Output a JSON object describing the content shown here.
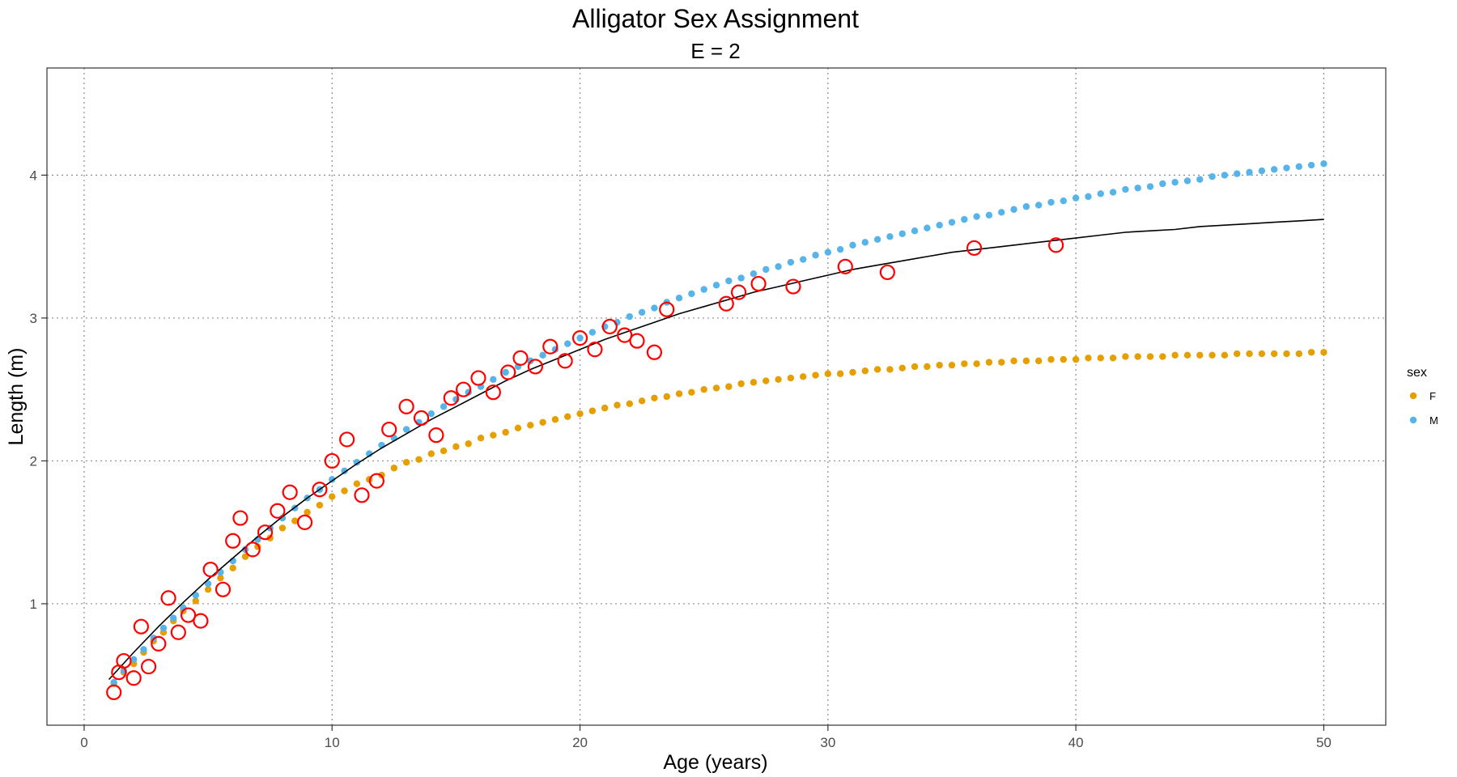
{
  "chart_data": {
    "type": "scatter",
    "title": "Alligator Sex Assignment",
    "subtitle": "E = 2",
    "xlabel": "Age (years)",
    "ylabel": "Length (m)",
    "xlim": [
      -1.5,
      52.5
    ],
    "ylim": [
      0.15,
      4.75
    ],
    "x_ticks": [
      0,
      10,
      20,
      30,
      40,
      50
    ],
    "y_ticks": [
      1,
      2,
      3,
      4
    ],
    "x_tick_labels": [
      "0",
      "10",
      "20",
      "30",
      "40",
      "50"
    ],
    "y_tick_labels": [
      "1",
      "2",
      "3",
      "4"
    ],
    "grid": "dotted",
    "legend": {
      "title": "sex",
      "placement": "right",
      "entries": [
        {
          "label": "F",
          "color": "#E69F00"
        },
        {
          "label": "M",
          "color": "#56B4E9"
        }
      ]
    },
    "series": [
      {
        "name": "F",
        "color": "#E69F00",
        "points": [
          [
            1.2,
            0.44
          ],
          [
            1.6,
            0.52
          ],
          [
            2.0,
            0.58
          ],
          [
            2.4,
            0.66
          ],
          [
            2.8,
            0.74
          ],
          [
            3.2,
            0.8
          ],
          [
            3.6,
            0.88
          ],
          [
            4.0,
            0.95
          ],
          [
            4.5,
            1.02
          ],
          [
            5.0,
            1.1
          ],
          [
            5.5,
            1.18
          ],
          [
            6.0,
            1.25
          ],
          [
            6.5,
            1.33
          ],
          [
            7.0,
            1.4
          ],
          [
            7.5,
            1.46
          ],
          [
            8.0,
            1.53
          ],
          [
            8.5,
            1.58
          ],
          [
            9.0,
            1.64
          ],
          [
            9.5,
            1.69
          ],
          [
            10.0,
            1.75
          ],
          [
            10.5,
            1.79
          ],
          [
            11.0,
            1.84
          ],
          [
            11.5,
            1.87
          ],
          [
            12.0,
            1.9
          ],
          [
            12.5,
            1.95
          ],
          [
            13.0,
            1.99
          ],
          [
            13.5,
            2.01
          ],
          [
            14.0,
            2.05
          ],
          [
            14.5,
            2.07
          ],
          [
            15.0,
            2.1
          ],
          [
            15.5,
            2.12
          ],
          [
            16.0,
            2.16
          ],
          [
            16.5,
            2.18
          ],
          [
            17.0,
            2.2
          ],
          [
            17.5,
            2.23
          ],
          [
            18.0,
            2.25
          ],
          [
            18.5,
            2.27
          ],
          [
            19.0,
            2.29
          ],
          [
            19.5,
            2.31
          ],
          [
            20.0,
            2.33
          ],
          [
            20.5,
            2.35
          ],
          [
            21.0,
            2.37
          ],
          [
            21.5,
            2.39
          ],
          [
            22.0,
            2.4
          ],
          [
            22.5,
            2.42
          ],
          [
            23.0,
            2.44
          ],
          [
            23.5,
            2.45
          ],
          [
            24.0,
            2.47
          ],
          [
            24.5,
            2.48
          ],
          [
            25.0,
            2.5
          ],
          [
            25.5,
            2.51
          ],
          [
            26.0,
            2.52
          ],
          [
            26.5,
            2.54
          ],
          [
            27.0,
            2.55
          ],
          [
            27.5,
            2.56
          ],
          [
            28.0,
            2.57
          ],
          [
            28.5,
            2.58
          ],
          [
            29.0,
            2.59
          ],
          [
            29.5,
            2.6
          ],
          [
            30.0,
            2.61
          ],
          [
            30.5,
            2.61
          ],
          [
            31.0,
            2.62
          ],
          [
            31.5,
            2.63
          ],
          [
            32.0,
            2.64
          ],
          [
            32.5,
            2.64
          ],
          [
            33.0,
            2.65
          ],
          [
            33.5,
            2.66
          ],
          [
            34.0,
            2.66
          ],
          [
            34.5,
            2.67
          ],
          [
            35.0,
            2.67
          ],
          [
            35.5,
            2.68
          ],
          [
            36.0,
            2.68
          ],
          [
            36.5,
            2.69
          ],
          [
            37.0,
            2.69
          ],
          [
            37.5,
            2.7
          ],
          [
            38.0,
            2.7
          ],
          [
            38.5,
            2.7
          ],
          [
            39.0,
            2.71
          ],
          [
            39.5,
            2.71
          ],
          [
            40.0,
            2.71
          ],
          [
            40.5,
            2.72
          ],
          [
            41.0,
            2.72
          ],
          [
            41.5,
            2.72
          ],
          [
            42.0,
            2.73
          ],
          [
            42.5,
            2.73
          ],
          [
            43.0,
            2.73
          ],
          [
            43.5,
            2.73
          ],
          [
            44.0,
            2.74
          ],
          [
            44.5,
            2.74
          ],
          [
            45.0,
            2.74
          ],
          [
            45.5,
            2.74
          ],
          [
            46.0,
            2.74
          ],
          [
            46.5,
            2.75
          ],
          [
            47.0,
            2.75
          ],
          [
            47.5,
            2.75
          ],
          [
            48.0,
            2.75
          ],
          [
            48.5,
            2.75
          ],
          [
            49.0,
            2.75
          ],
          [
            49.5,
            2.76
          ],
          [
            50.0,
            2.76
          ]
        ]
      },
      {
        "name": "M",
        "color": "#56B4E9",
        "points": [
          [
            1.2,
            0.45
          ],
          [
            1.6,
            0.53
          ],
          [
            2.0,
            0.61
          ],
          [
            2.4,
            0.68
          ],
          [
            2.8,
            0.76
          ],
          [
            3.2,
            0.83
          ],
          [
            3.6,
            0.9
          ],
          [
            4.0,
            0.97
          ],
          [
            4.5,
            1.06
          ],
          [
            5.0,
            1.14
          ],
          [
            5.5,
            1.22
          ],
          [
            6.0,
            1.3
          ],
          [
            6.5,
            1.38
          ],
          [
            7.0,
            1.45
          ],
          [
            7.5,
            1.53
          ],
          [
            8.0,
            1.6
          ],
          [
            8.5,
            1.67
          ],
          [
            9.0,
            1.74
          ],
          [
            9.5,
            1.8
          ],
          [
            10.0,
            1.87
          ],
          [
            10.5,
            1.93
          ],
          [
            11.0,
            1.99
          ],
          [
            11.5,
            2.05
          ],
          [
            12.0,
            2.11
          ],
          [
            12.5,
            2.16
          ],
          [
            13.0,
            2.22
          ],
          [
            13.5,
            2.27
          ],
          [
            14.0,
            2.33
          ],
          [
            14.5,
            2.38
          ],
          [
            15.0,
            2.43
          ],
          [
            15.5,
            2.48
          ],
          [
            16.0,
            2.52
          ],
          [
            16.5,
            2.57
          ],
          [
            17.0,
            2.62
          ],
          [
            17.5,
            2.66
          ],
          [
            18.0,
            2.7
          ],
          [
            18.5,
            2.74
          ],
          [
            19.0,
            2.78
          ],
          [
            19.5,
            2.82
          ],
          [
            20.0,
            2.86
          ],
          [
            20.5,
            2.9
          ],
          [
            21.0,
            2.94
          ],
          [
            21.5,
            2.97
          ],
          [
            22.0,
            3.01
          ],
          [
            22.5,
            3.04
          ],
          [
            23.0,
            3.07
          ],
          [
            23.5,
            3.11
          ],
          [
            24.0,
            3.14
          ],
          [
            24.5,
            3.17
          ],
          [
            25.0,
            3.2
          ],
          [
            25.5,
            3.23
          ],
          [
            26.0,
            3.26
          ],
          [
            26.5,
            3.28
          ],
          [
            27.0,
            3.31
          ],
          [
            27.5,
            3.34
          ],
          [
            28.0,
            3.36
          ],
          [
            28.5,
            3.39
          ],
          [
            29.0,
            3.41
          ],
          [
            29.5,
            3.44
          ],
          [
            30.0,
            3.46
          ],
          [
            30.5,
            3.48
          ],
          [
            31.0,
            3.51
          ],
          [
            31.5,
            3.53
          ],
          [
            32.0,
            3.55
          ],
          [
            32.5,
            3.57
          ],
          [
            33.0,
            3.59
          ],
          [
            33.5,
            3.61
          ],
          [
            34.0,
            3.63
          ],
          [
            34.5,
            3.65
          ],
          [
            35.0,
            3.67
          ],
          [
            35.5,
            3.69
          ],
          [
            36.0,
            3.71
          ],
          [
            36.5,
            3.72
          ],
          [
            37.0,
            3.74
          ],
          [
            37.5,
            3.76
          ],
          [
            38.0,
            3.78
          ],
          [
            38.5,
            3.79
          ],
          [
            39.0,
            3.81
          ],
          [
            39.5,
            3.82
          ],
          [
            40.0,
            3.84
          ],
          [
            40.5,
            3.85
          ],
          [
            41.0,
            3.87
          ],
          [
            41.5,
            3.88
          ],
          [
            42.0,
            3.9
          ],
          [
            42.5,
            3.91
          ],
          [
            43.0,
            3.92
          ],
          [
            43.5,
            3.94
          ],
          [
            44.0,
            3.95
          ],
          [
            44.5,
            3.96
          ],
          [
            45.0,
            3.97
          ],
          [
            45.5,
            3.99
          ],
          [
            46.0,
            4.0
          ],
          [
            46.5,
            4.01
          ],
          [
            47.0,
            4.02
          ],
          [
            47.5,
            4.03
          ],
          [
            48.0,
            4.04
          ],
          [
            48.5,
            4.05
          ],
          [
            49.0,
            4.06
          ],
          [
            49.5,
            4.07
          ],
          [
            50.0,
            4.08
          ]
        ]
      }
    ],
    "highlighted": {
      "color": "#FF0000",
      "points": [
        [
          1.2,
          0.38
        ],
        [
          1.4,
          0.52
        ],
        [
          1.6,
          0.6
        ],
        [
          2.0,
          0.48
        ],
        [
          2.3,
          0.84
        ],
        [
          2.6,
          0.56
        ],
        [
          3.0,
          0.72
        ],
        [
          3.4,
          1.04
        ],
        [
          3.8,
          0.8
        ],
        [
          4.2,
          0.92
        ],
        [
          4.7,
          0.88
        ],
        [
          5.1,
          1.24
        ],
        [
          5.6,
          1.1
        ],
        [
          6.0,
          1.44
        ],
        [
          6.3,
          1.6
        ],
        [
          6.8,
          1.38
        ],
        [
          7.3,
          1.5
        ],
        [
          7.8,
          1.65
        ],
        [
          8.3,
          1.78
        ],
        [
          8.9,
          1.57
        ],
        [
          9.5,
          1.8
        ],
        [
          10.0,
          2.0
        ],
        [
          10.6,
          2.15
        ],
        [
          11.2,
          1.76
        ],
        [
          11.8,
          1.86
        ],
        [
          12.3,
          2.22
        ],
        [
          13.0,
          2.38
        ],
        [
          13.6,
          2.3
        ],
        [
          14.2,
          2.18
        ],
        [
          14.8,
          2.44
        ],
        [
          15.3,
          2.5
        ],
        [
          15.9,
          2.58
        ],
        [
          16.5,
          2.48
        ],
        [
          17.1,
          2.62
        ],
        [
          17.6,
          2.72
        ],
        [
          18.2,
          2.66
        ],
        [
          18.8,
          2.8
        ],
        [
          19.4,
          2.7
        ],
        [
          20.0,
          2.86
        ],
        [
          20.6,
          2.78
        ],
        [
          21.2,
          2.94
        ],
        [
          21.8,
          2.88
        ],
        [
          22.3,
          2.84
        ],
        [
          23.0,
          2.76
        ],
        [
          23.5,
          3.06
        ],
        [
          25.9,
          3.1
        ],
        [
          26.4,
          3.18
        ],
        [
          27.2,
          3.24
        ],
        [
          28.6,
          3.22
        ],
        [
          30.7,
          3.36
        ],
        [
          32.4,
          3.32
        ],
        [
          35.9,
          3.49
        ],
        [
          39.2,
          3.51
        ]
      ]
    },
    "fit_curve": {
      "type": "line",
      "color": "#000000",
      "points": [
        [
          1.0,
          0.47
        ],
        [
          2.0,
          0.66
        ],
        [
          3.0,
          0.84
        ],
        [
          4.0,
          1.01
        ],
        [
          5.0,
          1.17
        ],
        [
          6.0,
          1.32
        ],
        [
          7.0,
          1.47
        ],
        [
          8.0,
          1.61
        ],
        [
          9.0,
          1.74
        ],
        [
          10.0,
          1.86
        ],
        [
          11.0,
          1.98
        ],
        [
          12.0,
          2.09
        ],
        [
          13.0,
          2.19
        ],
        [
          14.0,
          2.29
        ],
        [
          15.0,
          2.38
        ],
        [
          16.0,
          2.47
        ],
        [
          17.0,
          2.56
        ],
        [
          18.0,
          2.64
        ],
        [
          19.0,
          2.71
        ],
        [
          20.0,
          2.78
        ],
        [
          21.0,
          2.85
        ],
        [
          22.0,
          2.91
        ],
        [
          23.0,
          2.97
        ],
        [
          24.0,
          3.03
        ],
        [
          25.0,
          3.08
        ],
        [
          26.0,
          3.13
        ],
        [
          27.0,
          3.18
        ],
        [
          28.0,
          3.22
        ],
        [
          29.0,
          3.26
        ],
        [
          30.0,
          3.3
        ],
        [
          31.0,
          3.34
        ],
        [
          32.0,
          3.37
        ],
        [
          33.0,
          3.4
        ],
        [
          34.0,
          3.43
        ],
        [
          35.0,
          3.46
        ],
        [
          36.0,
          3.48
        ],
        [
          37.0,
          3.5
        ],
        [
          38.0,
          3.52
        ],
        [
          39.0,
          3.54
        ],
        [
          40.0,
          3.56
        ],
        [
          41.0,
          3.58
        ],
        [
          42.0,
          3.6
        ],
        [
          43.0,
          3.61
        ],
        [
          44.0,
          3.62
        ],
        [
          45.0,
          3.64
        ],
        [
          46.0,
          3.65
        ],
        [
          47.0,
          3.66
        ],
        [
          48.0,
          3.67
        ],
        [
          49.0,
          3.68
        ],
        [
          50.0,
          3.69
        ]
      ]
    }
  }
}
